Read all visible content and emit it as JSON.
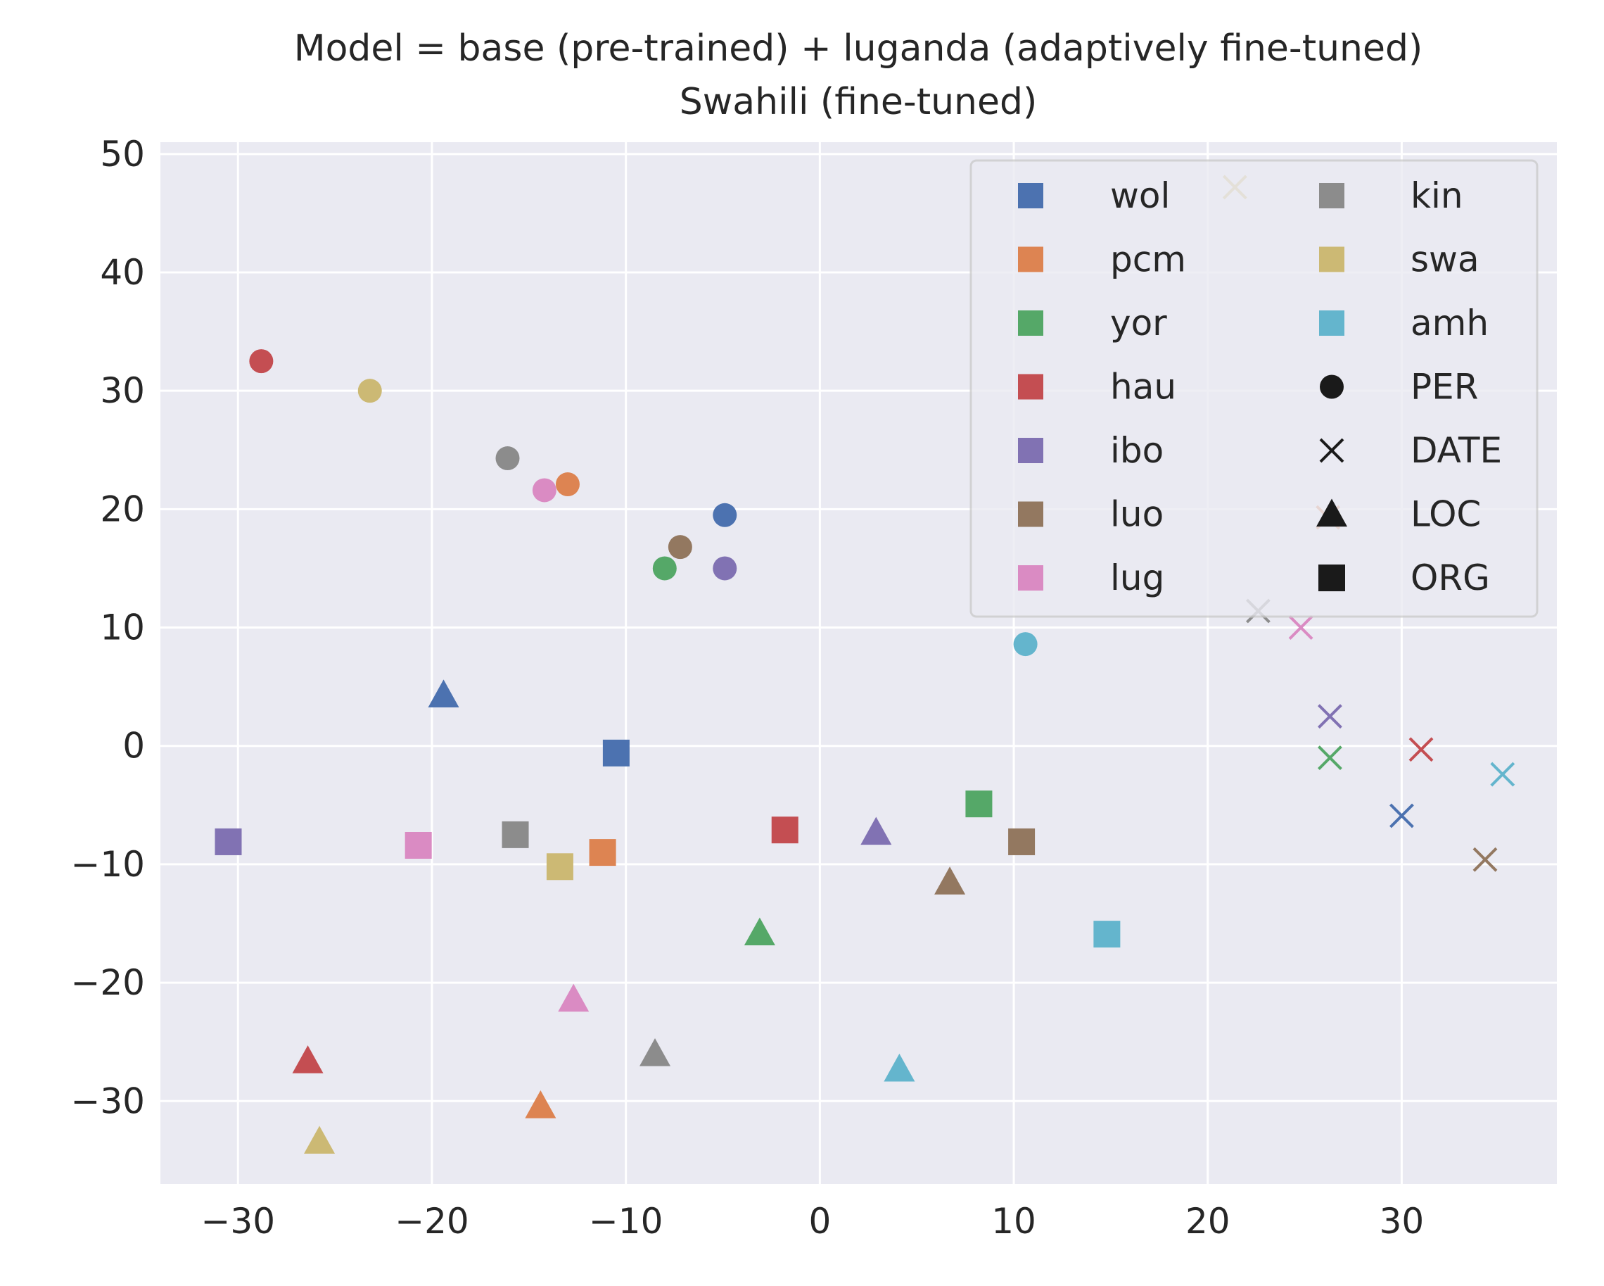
{
  "chart_data": {
    "type": "scatter",
    "title_line1": "Model = base (pre-trained) + luganda (adaptively fine-tuned)",
    "title_line2": "Swahili (fine-tuned)",
    "xlim": [
      -34,
      38
    ],
    "ylim": [
      -37,
      51
    ],
    "xticks": [
      -30,
      -20,
      -10,
      0,
      10,
      20,
      30
    ],
    "yticks": [
      -30,
      -20,
      -10,
      0,
      10,
      20,
      30,
      40,
      50
    ],
    "xtick_labels": [
      "−30",
      "−20",
      "−10",
      "0",
      "10",
      "20",
      "30"
    ],
    "ytick_labels": [
      "−30",
      "−20",
      "−10",
      "0",
      "10",
      "20",
      "30",
      "40",
      "50"
    ],
    "grid": true,
    "legend_position": "upper right",
    "colors": {
      "wol": "#4c72b0",
      "pcm": "#dd8452",
      "yor": "#55a868",
      "hau": "#c44e52",
      "ibo": "#8172b3",
      "luo": "#937860",
      "lug": "#da8bc3",
      "kin": "#8c8c8c",
      "swa": "#ccb974",
      "amh": "#64b5cd"
    },
    "legend_languages": [
      "wol",
      "pcm",
      "yor",
      "hau",
      "ibo",
      "luo",
      "lug",
      "kin",
      "swa",
      "amh"
    ],
    "legend_entities": [
      {
        "label": "PER",
        "marker": "circle"
      },
      {
        "label": "DATE",
        "marker": "x"
      },
      {
        "label": "LOC",
        "marker": "triangle"
      },
      {
        "label": "ORG",
        "marker": "square"
      }
    ],
    "points": [
      {
        "lang": "hau",
        "type": "PER",
        "x": -28.8,
        "y": 32.5
      },
      {
        "lang": "swa",
        "type": "PER",
        "x": -23.2,
        "y": 30.0
      },
      {
        "lang": "kin",
        "type": "PER",
        "x": -16.1,
        "y": 24.3
      },
      {
        "lang": "pcm",
        "type": "PER",
        "x": -13.0,
        "y": 22.1
      },
      {
        "lang": "lug",
        "type": "PER",
        "x": -14.2,
        "y": 21.6
      },
      {
        "lang": "wol",
        "type": "PER",
        "x": -4.9,
        "y": 19.5
      },
      {
        "lang": "luo",
        "type": "PER",
        "x": -7.2,
        "y": 16.8
      },
      {
        "lang": "yor",
        "type": "PER",
        "x": -8.0,
        "y": 15.0
      },
      {
        "lang": "ibo",
        "type": "PER",
        "x": -4.9,
        "y": 15.0
      },
      {
        "lang": "amh",
        "type": "PER",
        "x": 10.6,
        "y": 8.6
      },
      {
        "lang": "swa",
        "type": "DATE",
        "x": 21.4,
        "y": 47.2
      },
      {
        "lang": "kin",
        "type": "DATE",
        "x": 22.6,
        "y": 11.4
      },
      {
        "lang": "lug",
        "type": "DATE",
        "x": 24.8,
        "y": 10.0
      },
      {
        "lang": "ibo",
        "type": "DATE",
        "x": 26.3,
        "y": 2.5
      },
      {
        "lang": "yor",
        "type": "DATE",
        "x": 26.3,
        "y": -1.0
      },
      {
        "lang": "hau",
        "type": "DATE",
        "x": 31.0,
        "y": -0.3
      },
      {
        "lang": "amh",
        "type": "DATE",
        "x": 35.2,
        "y": -2.4
      },
      {
        "lang": "wol",
        "type": "DATE",
        "x": 30.0,
        "y": -5.9
      },
      {
        "lang": "luo",
        "type": "DATE",
        "x": 34.3,
        "y": -9.6
      },
      {
        "lang": "pcm",
        "type": "DATE",
        "x": 26.2,
        "y": 19.3
      },
      {
        "lang": "wol",
        "type": "LOC",
        "x": -19.4,
        "y": 4.3
      },
      {
        "lang": "ibo",
        "type": "LOC",
        "x": 2.9,
        "y": -7.3
      },
      {
        "lang": "luo",
        "type": "LOC",
        "x": 6.7,
        "y": -11.5
      },
      {
        "lang": "yor",
        "type": "LOC",
        "x": -3.1,
        "y": -15.8
      },
      {
        "lang": "lug",
        "type": "LOC",
        "x": -12.7,
        "y": -21.4
      },
      {
        "lang": "kin",
        "type": "LOC",
        "x": -8.5,
        "y": -26.0
      },
      {
        "lang": "amh",
        "type": "LOC",
        "x": 4.1,
        "y": -27.3
      },
      {
        "lang": "hau",
        "type": "LOC",
        "x": -26.4,
        "y": -26.6
      },
      {
        "lang": "pcm",
        "type": "LOC",
        "x": -14.4,
        "y": -30.4
      },
      {
        "lang": "swa",
        "type": "LOC",
        "x": -25.8,
        "y": -33.4
      },
      {
        "lang": "wol",
        "type": "ORG",
        "x": -10.5,
        "y": -0.6
      },
      {
        "lang": "yor",
        "type": "ORG",
        "x": 8.2,
        "y": -4.9
      },
      {
        "lang": "hau",
        "type": "ORG",
        "x": -1.8,
        "y": -7.1
      },
      {
        "lang": "luo",
        "type": "ORG",
        "x": 10.4,
        "y": -8.1
      },
      {
        "lang": "ibo",
        "type": "ORG",
        "x": -30.5,
        "y": -8.1
      },
      {
        "lang": "kin",
        "type": "ORG",
        "x": -15.7,
        "y": -7.5
      },
      {
        "lang": "lug",
        "type": "ORG",
        "x": -20.7,
        "y": -8.4
      },
      {
        "lang": "pcm",
        "type": "ORG",
        "x": -11.2,
        "y": -9.0
      },
      {
        "lang": "swa",
        "type": "ORG",
        "x": -13.4,
        "y": -10.2
      },
      {
        "lang": "amh",
        "type": "ORG",
        "x": 14.8,
        "y": -15.9
      }
    ]
  }
}
